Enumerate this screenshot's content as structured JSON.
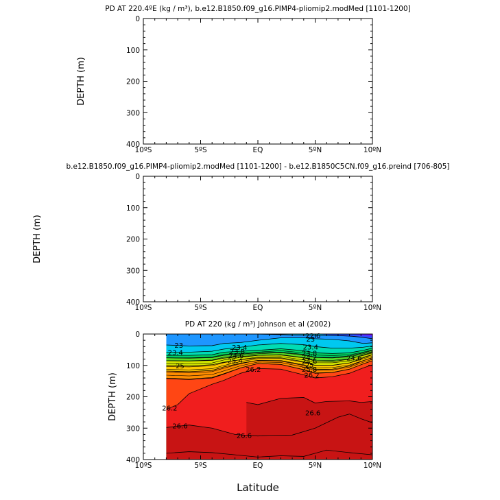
{
  "chart_data": [
    {
      "type": "heatmap",
      "title": "PD AT 220.4ºE (kg / m³), b.e12.B1850.f09_g16.PIMP4-pliomip2.modMed [1101-1200]",
      "ylabel": "DEPTH (m)",
      "xlim": [
        -10,
        10
      ],
      "ylim": [
        0,
        400
      ],
      "y_reversed": true,
      "x_ticks": [
        "10ºS",
        "5ºS",
        "EQ",
        "5ºN",
        "10ºN"
      ],
      "y_ticks": [
        "0",
        "100",
        "200",
        "300",
        "400"
      ],
      "x_tick_values": [
        -10,
        -5,
        0,
        5,
        10
      ],
      "y_tick_values": [
        0,
        100,
        200,
        300,
        400
      ],
      "contours": [],
      "note_empty": true
    },
    {
      "type": "heatmap",
      "title": "b.e12.B1850.f09_g16.PIMP4-pliomip2.modMed [1101-1200] - b.e12.B1850C5CN.f09_g16.preind [706-805]",
      "ylabel": "DEPTH (m)",
      "xlim": [
        -10,
        10
      ],
      "ylim": [
        0,
        400
      ],
      "y_reversed": true,
      "x_ticks": [
        "10ºS",
        "5ºS",
        "EQ",
        "5ºN",
        "10ºN"
      ],
      "y_ticks": [
        "0",
        "100",
        "200",
        "300",
        "400"
      ],
      "x_tick_values": [
        -10,
        -5,
        0,
        5,
        10
      ],
      "y_tick_values": [
        0,
        100,
        200,
        300,
        400
      ],
      "contours": []
    },
    {
      "type": "heatmap",
      "title": "PD AT 220 (kg / m³) Johnson et al (2002)",
      "ylabel": "DEPTH (m)",
      "xlabel": "Latitude",
      "xlim": [
        -10,
        10
      ],
      "ylim": [
        0,
        400
      ],
      "y_reversed": true,
      "data_x_range": [
        -8,
        10
      ],
      "x_ticks": [
        "10ºS",
        "5ºS",
        "EQ",
        "5ºN",
        "10ºN"
      ],
      "y_ticks": [
        "0",
        "100",
        "200",
        "300",
        "400"
      ],
      "x_tick_values": [
        -10,
        -5,
        0,
        5,
        10
      ],
      "y_tick_values": [
        0,
        100,
        200,
        300,
        400
      ],
      "levels": [
        21.8,
        22.2,
        22.6,
        23,
        23.4,
        23.8,
        24.2,
        24.6,
        25,
        25.4,
        25.8,
        26.2,
        26.6,
        27
      ],
      "colors": [
        "#a000c8",
        "#5a28ff",
        "#2850ff",
        "#1e96ff",
        "#00c8f0",
        "#00dcb4",
        "#00d264",
        "#5adc28",
        "#d2e600",
        "#ffc800",
        "#ff8c00",
        "#ff4614",
        "#f01e1e",
        "#c81414"
      ],
      "contours": [
        {
          "level": 22.6,
          "labeled": true,
          "x": [
            -8,
            -6,
            -4,
            -2,
            -0.5,
            1,
            3,
            5,
            7,
            8.2,
            9,
            10
          ],
          "y": [
            0,
            0,
            0,
            0,
            0,
            1,
            3,
            4,
            5,
            7,
            10,
            15
          ]
        },
        {
          "level": 23,
          "labeled": true,
          "x": [
            -8,
            -6,
            -4,
            -3,
            -1.5,
            0,
            2,
            4,
            5,
            6.5,
            8,
            9.2,
            10
          ],
          "y": [
            35,
            38,
            37,
            30,
            27,
            20,
            12,
            12,
            15,
            17,
            22,
            30,
            28
          ]
        },
        {
          "level": 23.4,
          "labeled": true,
          "x": [
            -8,
            -6,
            -4,
            -3,
            -1.5,
            0,
            2,
            4,
            5,
            6.5,
            8,
            9.2,
            10
          ],
          "y": [
            58,
            58,
            55,
            48,
            42,
            35,
            30,
            34,
            40,
            45,
            45,
            42,
            38
          ]
        },
        {
          "level": 23.8,
          "labeled": true,
          "x": [
            -8,
            -6,
            -4,
            -3,
            -1.5,
            0,
            2,
            4,
            5,
            6.5,
            8,
            9.2,
            10
          ],
          "y": [
            68,
            68,
            66,
            58,
            55,
            52,
            47,
            53,
            60,
            62,
            60,
            52,
            45
          ]
        },
        {
          "level": 24.2,
          "labeled": true,
          "x": [
            -8,
            -6,
            -4,
            -3,
            -1.5,
            0,
            2,
            4,
            5,
            6.5,
            8,
            9.2,
            10
          ],
          "y": [
            76,
            77,
            75,
            68,
            64,
            60,
            58,
            65,
            74,
            75,
            70,
            60,
            52
          ]
        },
        {
          "level": 24.6,
          "labeled": true,
          "x": [
            -8,
            -6,
            -4,
            -3,
            -1.5,
            0,
            2,
            4,
            5,
            6.5,
            8,
            9.2,
            10
          ],
          "y": [
            85,
            86,
            84,
            77,
            72,
            68,
            67,
            76,
            86,
            88,
            80,
            67,
            58
          ]
        },
        {
          "level": 25,
          "labeled": true,
          "x": [
            -8,
            -6,
            -4,
            -3,
            -1.5,
            0,
            2,
            4,
            5,
            6.5,
            8,
            9.2,
            10
          ],
          "y": [
            100,
            102,
            98,
            90,
            82,
            76,
            76,
            88,
            100,
            100,
            92,
            76,
            66
          ]
        },
        {
          "level": 25.4,
          "labeled": true,
          "x": [
            -8,
            -6,
            -4,
            -3,
            -1.5,
            0,
            2,
            4,
            5,
            6.5,
            8,
            9.2,
            10
          ],
          "y": [
            118,
            120,
            116,
            105,
            93,
            84,
            86,
            100,
            113,
            112,
            102,
            85,
            75
          ]
        },
        {
          "level": 25.8,
          "labeled": true,
          "x": [
            -8,
            -6,
            -4,
            -3,
            -1.5,
            0,
            2,
            4,
            5,
            6.5,
            8,
            9.2,
            10
          ],
          "y": [
            142,
            145,
            140,
            128,
            108,
            94,
            97,
            114,
            125,
            123,
            112,
            95,
            85
          ]
        },
        {
          "level": 26.2,
          "labeled": true,
          "x": [
            -8,
            -7,
            -6,
            -4,
            -3,
            -1.5,
            0,
            2,
            4,
            5,
            6.5,
            8,
            9.2,
            10
          ],
          "y": [
            240,
            225,
            190,
            160,
            148,
            125,
            110,
            112,
            130,
            140,
            136,
            125,
            108,
            98
          ]
        },
        {
          "level": 26.6,
          "labeled": true,
          "x": [
            -8,
            -6,
            -4,
            -2,
            0,
            1,
            3,
            5,
            7,
            8,
            9,
            10
          ],
          "y": [
            298,
            290,
            300,
            320,
            325,
            323,
            322,
            300,
            265,
            255,
            270,
            283
          ]
        },
        {
          "level": 26.6,
          "labeled": false,
          "x": [
            -1,
            0,
            1,
            2,
            4,
            5,
            6,
            8,
            9,
            10
          ],
          "y": [
            218,
            225,
            215,
            205,
            202,
            220,
            215,
            213,
            218,
            215
          ]
        },
        {
          "level": 27,
          "labeled": false,
          "x": [
            -8,
            -6,
            -4,
            -2,
            0,
            2,
            4,
            5,
            6,
            8,
            10
          ],
          "y": [
            380,
            375,
            378,
            385,
            392,
            388,
            390,
            380,
            370,
            378,
            385
          ]
        }
      ],
      "contour_labels": [
        {
          "text": "23",
          "x": -6.9,
          "y": 35
        },
        {
          "text": "23.4",
          "x": -7.2,
          "y": 58
        },
        {
          "text": "25",
          "x": -6.8,
          "y": 100
        },
        {
          "text": "26.2",
          "x": -7.7,
          "y": 235
        },
        {
          "text": "26.6",
          "x": -6.8,
          "y": 292
        },
        {
          "text": "26.6",
          "x": -1.2,
          "y": 322
        },
        {
          "text": "26.6",
          "x": 4.8,
          "y": 250
        },
        {
          "text": "26.2",
          "x": -0.4,
          "y": 112
        },
        {
          "text": "23.4",
          "x": -1.6,
          "y": 42
        },
        {
          "text": "23.8",
          "x": -1.8,
          "y": 55
        },
        {
          "text": "24.6",
          "x": -1.9,
          "y": 68
        },
        {
          "text": "25.4",
          "x": -2.0,
          "y": 84
        },
        {
          "text": "22.6",
          "x": 4.8,
          "y": 4
        },
        {
          "text": "23",
          "x": 4.6,
          "y": 15
        },
        {
          "text": "23.4",
          "x": 4.6,
          "y": 40
        },
        {
          "text": "23.8",
          "x": 4.5,
          "y": 60
        },
        {
          "text": "24.2",
          "x": 4.5,
          "y": 73
        },
        {
          "text": "24.6",
          "x": 4.5,
          "y": 86
        },
        {
          "text": "25",
          "x": 4.5,
          "y": 98
        },
        {
          "text": "25.8",
          "x": 4.5,
          "y": 112
        },
        {
          "text": "26.2",
          "x": 4.7,
          "y": 130
        },
        {
          "text": "24.6",
          "x": 8.4,
          "y": 75
        }
      ]
    }
  ]
}
